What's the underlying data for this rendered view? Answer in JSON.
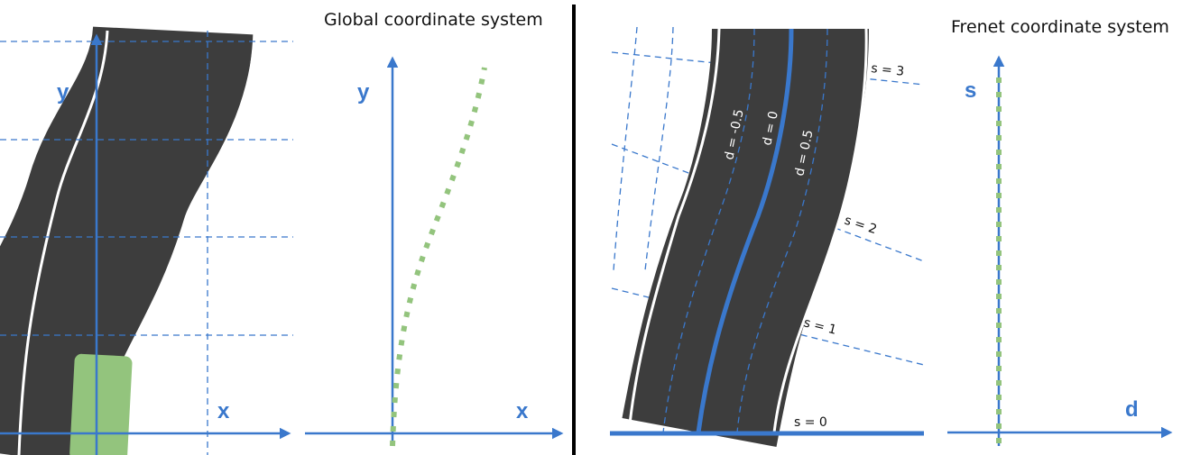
{
  "global_panel": {
    "title": "Global coordinate system",
    "axis_x": "x",
    "axis_y": "y",
    "road_axis_x": "x",
    "road_axis_y": "y",
    "vehicle_color": "#93c47d"
  },
  "frenet_panel": {
    "title": "Frenet coordinate system",
    "axis_s": "s",
    "axis_d": "d",
    "d_labels": [
      "d = -0.5",
      "d = 0",
      "d = 0.5"
    ],
    "s_labels": [
      "s = 0",
      "s = 1",
      "s = 2",
      "s = 3"
    ]
  },
  "colors": {
    "axis": "#3a78cc",
    "road": "#3d3d3d",
    "trajectory": "#93c47d",
    "grid": "#3a78cc",
    "divider": "#000000"
  }
}
